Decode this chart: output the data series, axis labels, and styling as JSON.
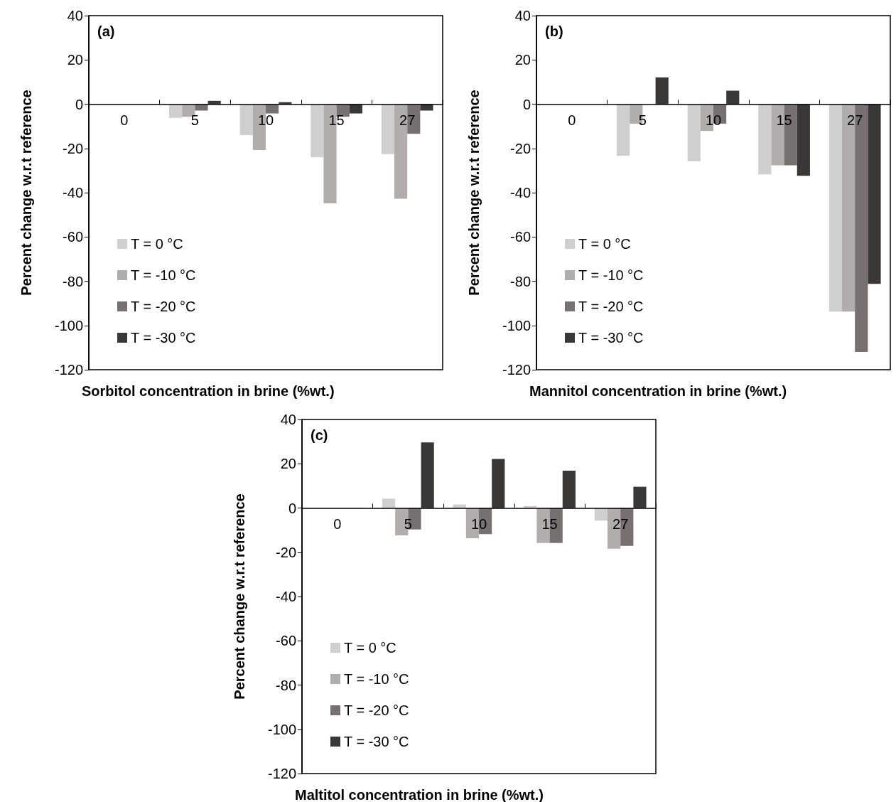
{
  "chart_data": [
    {
      "type": "bar",
      "xlabel": "Sorbitol concentration in brine (%wt.)",
      "ylabel": "Percent change w.r.t reference",
      "annotations": [
        "(a)"
      ],
      "legend": "bottom left",
      "categories": [
        "0",
        "5",
        "10",
        "15",
        "27"
      ],
      "ylim": [
        -120,
        40
      ],
      "yticks": [
        -120,
        -100,
        -80,
        -60,
        -40,
        -20,
        0,
        20,
        40
      ],
      "series": [
        {
          "name": "T = 0 °C",
          "color": "#d0cfcf",
          "values": [
            0,
            -6.2,
            -14,
            -23.9,
            -22.6
          ]
        },
        {
          "name": "T = -10 °C",
          "color": "#b0adac",
          "values": [
            0,
            -5.7,
            -20.7,
            -44.8,
            -42.7
          ]
        },
        {
          "name": "T = -20 °C",
          "color": "#767170",
          "values": [
            0,
            -2.9,
            -4.2,
            -5.7,
            -13.4
          ]
        },
        {
          "name": "T = -30 °C",
          "color": "#3a3837",
          "values": [
            0,
            1.5,
            0.9,
            -4.2,
            -2.9
          ]
        }
      ]
    },
    {
      "type": "bar",
      "xlabel": "Mannitol concentration in brine (%wt.)",
      "ylabel": "Percent change w.r.t reference",
      "annotations": [
        "(b)"
      ],
      "legend": "bottom left",
      "categories": [
        "0",
        "5",
        "10",
        "15",
        "27"
      ],
      "ylim": [
        -120,
        40
      ],
      "yticks": [
        -120,
        -100,
        -80,
        -60,
        -40,
        -20,
        0,
        20,
        40
      ],
      "series": [
        {
          "name": "T = 0 °C",
          "color": "#d0cfcf",
          "values": [
            0,
            -23.3,
            -25.8,
            -31.7,
            -93.7
          ]
        },
        {
          "name": "T = -10 °C",
          "color": "#b0adac",
          "values": [
            0,
            -8.8,
            -12.1,
            -27.6,
            -93.7
          ]
        },
        {
          "name": "T = -20 °C",
          "color": "#767170",
          "values": [
            0,
            0,
            -8.8,
            -27.6,
            -112
          ]
        },
        {
          "name": "T = -30 °C",
          "color": "#3a3837",
          "values": [
            0,
            12.1,
            6.1,
            -32.4,
            -81.2
          ]
        }
      ]
    },
    {
      "type": "bar",
      "xlabel": "Maltitol concentration in brine (%wt.)",
      "ylabel": "Percent change w.r.t reference",
      "annotations": [
        "(c)"
      ],
      "legend": "bottom left",
      "categories": [
        "0",
        "5",
        "10",
        "15",
        "27"
      ],
      "ylim": [
        -120,
        40
      ],
      "yticks": [
        -120,
        -100,
        -80,
        -60,
        -40,
        -20,
        0,
        20,
        40
      ],
      "series": [
        {
          "name": "T = 0 °C",
          "color": "#d0cfcf",
          "values": [
            0,
            4.2,
            1.6,
            0.9,
            -5.7
          ]
        },
        {
          "name": "T = -10 °C",
          "color": "#b0adac",
          "values": [
            0,
            -12.4,
            -13.7,
            -15.8,
            -18.4
          ]
        },
        {
          "name": "T = -20 °C",
          "color": "#767170",
          "values": [
            0,
            -9.7,
            -11.8,
            -15.8,
            -17.1
          ]
        },
        {
          "name": "T = -30 °C",
          "color": "#3a3837",
          "values": [
            0,
            29.6,
            22.2,
            16.9,
            9.6
          ]
        }
      ]
    }
  ]
}
